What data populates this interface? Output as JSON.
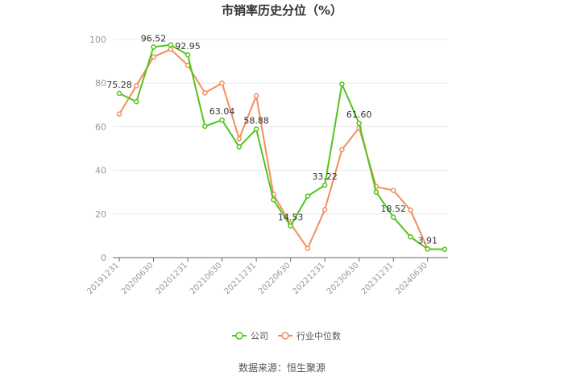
{
  "chart_data": {
    "type": "line",
    "title": "市销率历史分位（%）",
    "x_ticks": [
      "20191231",
      "20200630",
      "20201231",
      "20210630",
      "20211231",
      "20220630",
      "20221231",
      "20230630",
      "20231231",
      "20240630"
    ],
    "ylim": [
      0,
      100
    ],
    "yticks": [
      0,
      20,
      40,
      60,
      80,
      100
    ],
    "grid": true,
    "legend_position": "bottom",
    "series": [
      {
        "name": "公司",
        "color": "#52c41a",
        "values": [
          75.28,
          71.5,
          96.52,
          97.5,
          92.95,
          60.2,
          63.04,
          50.8,
          58.88,
          26.5,
          14.53,
          28.2,
          33.22,
          79.5,
          61.6,
          30.0,
          18.52,
          9.5,
          3.91,
          3.8
        ]
      },
      {
        "name": "行业中位数",
        "color": "#f28e5c",
        "values": [
          65.8,
          78.8,
          92.0,
          95.5,
          88.2,
          75.5,
          80.0,
          54.5,
          74.2,
          29.0,
          15.5,
          4.2,
          22.0,
          49.5,
          59.5,
          32.5,
          30.8,
          21.8,
          4.0,
          null
        ]
      }
    ],
    "data_labels": [
      {
        "index": 0,
        "text": "75.28"
      },
      {
        "index": 2,
        "text": "96.52"
      },
      {
        "index": 4,
        "text": "92.95"
      },
      {
        "index": 6,
        "text": "63.04"
      },
      {
        "index": 8,
        "text": "58.88"
      },
      {
        "index": 10,
        "text": "14.53"
      },
      {
        "index": 12,
        "text": "33.22"
      },
      {
        "index": 14,
        "text": "61.60"
      },
      {
        "index": 16,
        "text": "18.52"
      },
      {
        "index": 18,
        "text": "3.91"
      }
    ],
    "source": "数据来源：恒生聚源"
  }
}
